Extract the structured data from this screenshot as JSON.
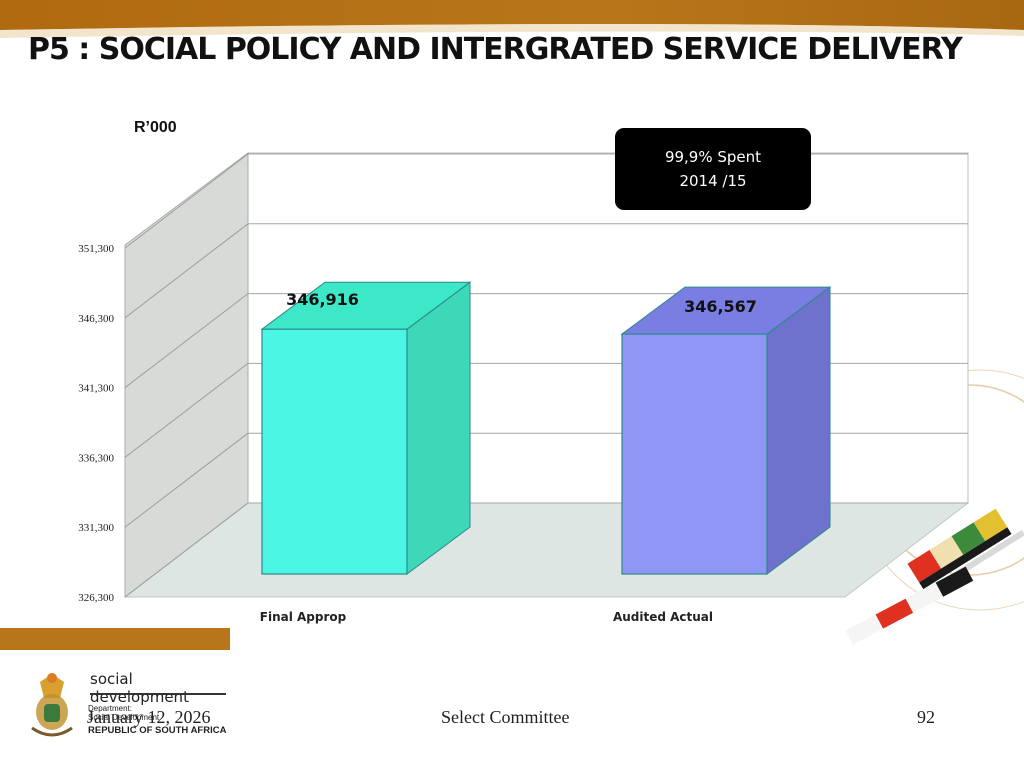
{
  "slide": {
    "title": "P5 : SOCIAL POLICY AND INTERGRATED SERVICE DELIVERY",
    "unit_label": "R’000",
    "callout": {
      "line1": "99,9% Spent",
      "line2": "2014 /15"
    },
    "footer": {
      "date": "January 12, 2026",
      "center": "Select Committee",
      "page": "92"
    },
    "logo": {
      "main": "social development",
      "dept": "Department:\nSocial Development",
      "republic": "REPUBLIC OF SOUTH AFRICA"
    },
    "colors": {
      "band": "#B8761A",
      "bar1_front": "#4CF6E4",
      "bar1_top": "#3CE8C8",
      "bar1_side": "#3ED8B8",
      "bar2_front": "#9096F6",
      "bar2_top": "#7A7EE2",
      "bar2_side": "#6E72CC",
      "wall": "#D7DAD6",
      "floor": "#DDE6E2"
    }
  },
  "chart_data": {
    "type": "bar",
    "categories": [
      "Final Approp",
      "Audited Actual"
    ],
    "values": [
      346916,
      346567
    ],
    "value_labels": [
      "346,916",
      "346,567"
    ],
    "y_ticks": [
      326300,
      331300,
      336300,
      341300,
      346300,
      351300
    ],
    "y_tick_labels": [
      "326,300",
      "331,300",
      "336,300",
      "341,300",
      "346,300",
      "351,300"
    ],
    "ylim": [
      326300,
      351300
    ],
    "ylabel": "R’000",
    "grid": true,
    "style": "3d-column"
  }
}
